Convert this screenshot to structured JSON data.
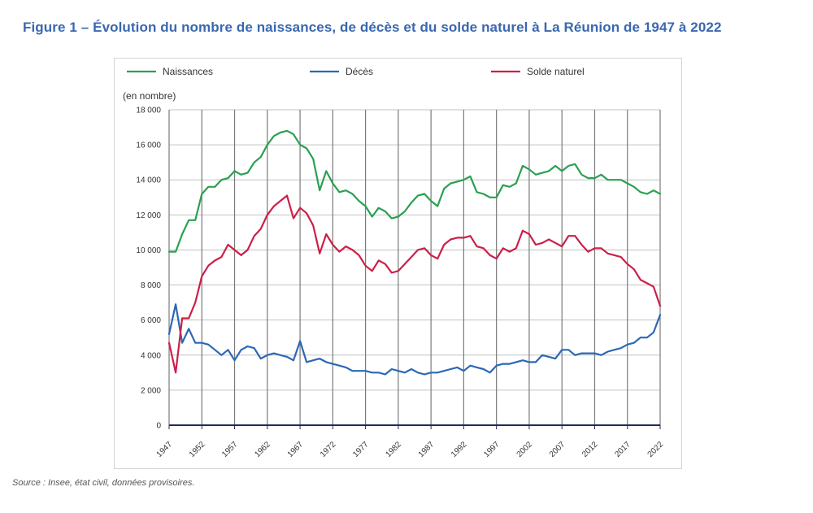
{
  "figure_title": "Figure 1 – Évolution du nombre de naissances, de décès et du solde naturel à La Réunion de 1947 à 2022",
  "source": "Source : Insee, état civil, données provisoires.",
  "chart_data": {
    "type": "line",
    "title": "Figure 1 – Évolution du nombre de naissances, de décès et du solde naturel à La Réunion de 1947 à 2022",
    "ylabel": "(en nombre)",
    "xlabel": "",
    "ylim": [
      0,
      18000
    ],
    "xlim": [
      1947,
      2022
    ],
    "yticks": [
      0,
      2000,
      4000,
      6000,
      8000,
      10000,
      12000,
      14000,
      16000,
      18000
    ],
    "ytick_labels": [
      "0",
      "2 000",
      "4 000",
      "6 000",
      "8 000",
      "10 000",
      "12 000",
      "14 000",
      "16 000",
      "18 000"
    ],
    "xticks": [
      1947,
      1952,
      1957,
      1962,
      1967,
      1972,
      1977,
      1982,
      1987,
      1992,
      1997,
      2002,
      2007,
      2012,
      2017,
      2022
    ],
    "xtick_labels": [
      "1947",
      "1952",
      "1957",
      "1962",
      "1967",
      "1972",
      "1977",
      "1982",
      "1987",
      "1992",
      "1997",
      "2002",
      "2007",
      "2012",
      "2017",
      "2022"
    ],
    "grid": true,
    "legend_position": "top",
    "x": [
      1947,
      1948,
      1949,
      1950,
      1951,
      1952,
      1953,
      1954,
      1955,
      1956,
      1957,
      1958,
      1959,
      1960,
      1961,
      1962,
      1963,
      1964,
      1965,
      1966,
      1967,
      1968,
      1969,
      1970,
      1971,
      1972,
      1973,
      1974,
      1975,
      1976,
      1977,
      1978,
      1979,
      1980,
      1981,
      1982,
      1983,
      1984,
      1985,
      1986,
      1987,
      1988,
      1989,
      1990,
      1991,
      1992,
      1993,
      1994,
      1995,
      1996,
      1997,
      1998,
      1999,
      2000,
      2001,
      2002,
      2003,
      2004,
      2005,
      2006,
      2007,
      2008,
      2009,
      2010,
      2011,
      2012,
      2013,
      2014,
      2015,
      2016,
      2017,
      2018,
      2019,
      2020,
      2021,
      2022
    ],
    "series": [
      {
        "name": "Naissances",
        "color": "#2aa052",
        "values": [
          9900,
          9900,
          10900,
          11700,
          11700,
          13200,
          13600,
          13600,
          14000,
          14100,
          14500,
          14300,
          14400,
          15000,
          15300,
          16000,
          16500,
          16700,
          16800,
          16600,
          16000,
          15800,
          15200,
          13400,
          14500,
          13800,
          13300,
          13400,
          13200,
          12800,
          12500,
          11900,
          12400,
          12200,
          11800,
          11900,
          12200,
          12700,
          13100,
          13200,
          12800,
          12500,
          13500,
          13800,
          13900,
          14000,
          14200,
          13300,
          13200,
          13000,
          13000,
          13700,
          13600,
          13800,
          14800,
          14600,
          14300,
          14400,
          14500,
          14800,
          14500,
          14800,
          14900,
          14300,
          14100,
          14100,
          14300,
          14000,
          14000,
          14000,
          13800,
          13600,
          13300,
          13200,
          13400,
          13200
        ]
      },
      {
        "name": "Décès",
        "color": "#2b68b5",
        "values": [
          5200,
          6900,
          4700,
          5500,
          4700,
          4700,
          4600,
          4300,
          4000,
          4300,
          3700,
          4300,
          4500,
          4400,
          3800,
          4000,
          4100,
          4000,
          3900,
          3700,
          4800,
          3600,
          3700,
          3800,
          3600,
          3500,
          3400,
          3300,
          3100,
          3100,
          3100,
          3000,
          3000,
          2900,
          3200,
          3100,
          3000,
          3200,
          3000,
          2900,
          3000,
          3000,
          3100,
          3200,
          3300,
          3100,
          3400,
          3300,
          3200,
          3000,
          3400,
          3500,
          3500,
          3600,
          3700,
          3600,
          3600,
          4000,
          3900,
          3800,
          4300,
          4300,
          4000,
          4100,
          4100,
          4100,
          4000,
          4200,
          4300,
          4400,
          4600,
          4700,
          5000,
          5000,
          5300,
          6300
        ]
      },
      {
        "name": "Solde naturel",
        "color": "#cc1f48",
        "values": [
          4700,
          3000,
          6100,
          6100,
          7000,
          8500,
          9100,
          9400,
          9600,
          10300,
          10000,
          9700,
          10000,
          10800,
          11200,
          12000,
          12500,
          12800,
          13100,
          11800,
          12400,
          12100,
          11400,
          9800,
          10900,
          10300,
          9900,
          10200,
          10000,
          9700,
          9100,
          8800,
          9400,
          9200,
          8700,
          8800,
          9200,
          9600,
          10000,
          10100,
          9700,
          9500,
          10300,
          10600,
          10700,
          10700,
          10800,
          10200,
          10100,
          9700,
          9500,
          10100,
          9900,
          10100,
          11100,
          10900,
          10300,
          10400,
          10600,
          10400,
          10200,
          10800,
          10800,
          10300,
          9900,
          10100,
          10100,
          9800,
          9700,
          9600,
          9200,
          8900,
          8300,
          8100,
          7900,
          6800
        ]
      }
    ]
  }
}
